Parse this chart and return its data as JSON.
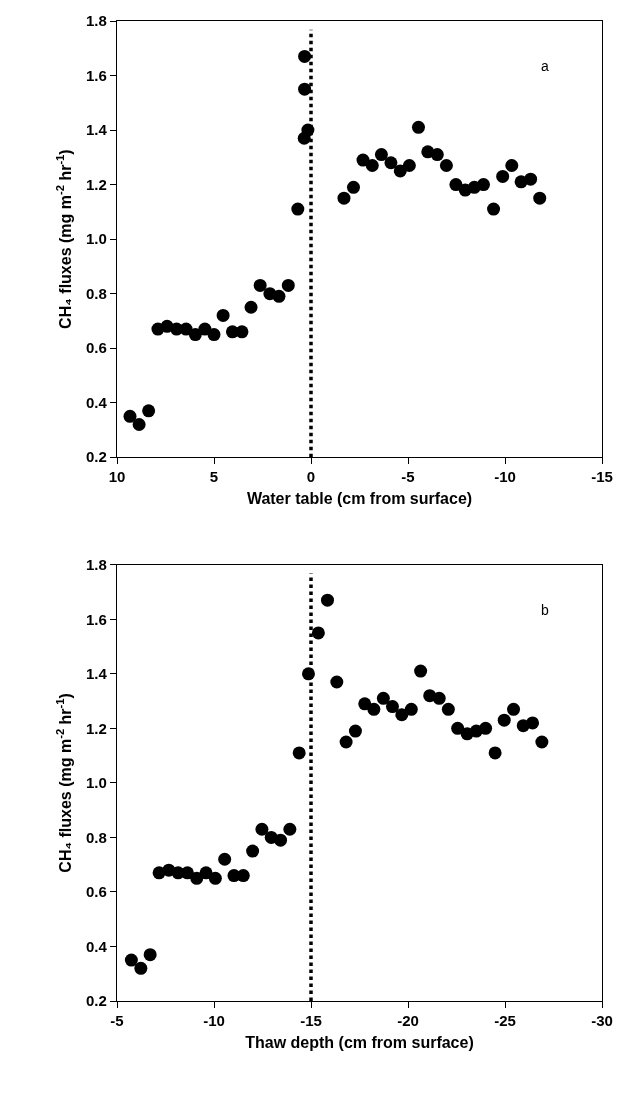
{
  "chart_data": [
    {
      "type": "scatter",
      "xlabel": "Water table (cm from surface)",
      "ylabel": "CH₄ fluxes (mg m$^{-2}$ hr$^{-1}$)",
      "annotations": [
        "a"
      ],
      "x": [
        9.33,
        8.86,
        8.37,
        7.89,
        7.42,
        6.93,
        6.44,
        5.96,
        5.47,
        5.0,
        4.53,
        4.05,
        3.56,
        3.09,
        2.62,
        2.12,
        1.65,
        1.17,
        0.68,
        0.35,
        0.16,
        0.33,
        0.33,
        -1.7,
        -2.19,
        -2.68,
        -3.16,
        -3.63,
        -4.12,
        -4.6,
        -5.07,
        -5.54,
        -6.02,
        -6.51,
        -6.98,
        -7.47,
        -7.95,
        -8.42,
        -8.89,
        -9.41,
        -9.88,
        -10.35,
        -10.83,
        -11.32,
        -11.79
      ],
      "values": [
        0.35,
        0.32,
        0.37,
        0.67,
        0.68,
        0.67,
        0.67,
        0.65,
        0.67,
        0.65,
        0.72,
        0.66,
        0.66,
        0.75,
        0.83,
        0.8,
        0.79,
        0.83,
        1.11,
        1.37,
        1.4,
        1.55,
        1.67,
        1.15,
        1.19,
        1.29,
        1.27,
        1.31,
        1.28,
        1.25,
        1.27,
        1.41,
        1.32,
        1.31,
        1.27,
        1.2,
        1.18,
        1.19,
        1.2,
        1.11,
        1.23,
        1.27,
        1.21,
        1.22,
        1.15
      ],
      "color": "#000000",
      "marker": "circle",
      "grid": false,
      "xlim": [
        10,
        -15
      ],
      "xticks": [
        10,
        5,
        0,
        -5,
        -10,
        -15
      ],
      "ylim": [
        0.2,
        1.8
      ],
      "yticks": [
        0.2,
        0.4,
        0.6,
        0.8,
        {
          "value": 1,
          "label": "1.0"
        },
        1.2,
        1.4,
        1.6,
        1.8
      ],
      "ref_lines": [
        {
          "axis": "x",
          "value": 0,
          "label": null,
          "color": "#000000",
          "line_style": "dotted"
        }
      ]
    },
    {
      "type": "scatter",
      "xlabel": "Thaw depth (cm from surface)",
      "ylabel": "CH₄ fluxes (mg m$^{-2}$ hr$^{-1}$)",
      "annotations": [
        "b"
      ],
      "x": [
        -5.74,
        -6.23,
        -6.71,
        -7.17,
        -7.67,
        -8.15,
        -8.63,
        -9.11,
        -9.59,
        -10.07,
        -10.55,
        -11.03,
        -11.51,
        -11.99,
        -12.47,
        -12.95,
        -13.43,
        -13.91,
        -14.39,
        -14.87,
        -15.38,
        -15.85,
        -16.33,
        -16.81,
        -17.29,
        -17.77,
        -18.24,
        -18.73,
        -19.2,
        -19.68,
        -20.17,
        -20.65,
        -21.12,
        -21.61,
        -22.08,
        -22.56,
        -23.05,
        -23.52,
        -24.0,
        -24.49,
        -24.96,
        -25.44,
        -25.94,
        -26.42,
        -26.9
      ],
      "values": [
        0.35,
        0.32,
        0.37,
        0.67,
        0.68,
        0.67,
        0.67,
        0.65,
        0.67,
        0.65,
        0.72,
        0.66,
        0.66,
        0.75,
        0.83,
        0.8,
        0.79,
        0.83,
        1.11,
        1.4,
        1.55,
        1.67,
        1.37,
        1.15,
        1.19,
        1.29,
        1.27,
        1.31,
        1.28,
        1.25,
        1.27,
        1.41,
        1.32,
        1.31,
        1.27,
        1.2,
        1.18,
        1.19,
        1.2,
        1.11,
        1.23,
        1.27,
        1.21,
        1.22,
        1.15
      ],
      "color": "#000000",
      "marker": "circle",
      "grid": false,
      "xlim": [
        -5,
        -30
      ],
      "xticks": [
        -5,
        -10,
        -15,
        -20,
        -25,
        -30
      ],
      "ylim": [
        0.2,
        1.8
      ],
      "yticks": [
        0.2,
        0.4,
        0.6,
        0.8,
        {
          "value": 1,
          "label": "1.0"
        },
        1.2,
        1.4,
        1.6,
        1.8
      ],
      "ref_lines": [
        {
          "axis": "x",
          "value": -15,
          "label": null,
          "color": "#000000",
          "line_style": "dotted"
        }
      ]
    }
  ]
}
